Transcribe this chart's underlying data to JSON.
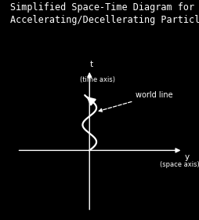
{
  "title_line1": "Simplified Space-Time Diagram for",
  "title_line2": "Accelerating/Decellerating Particle",
  "background_color": "#000000",
  "axis_color": "#ffffff",
  "text_color": "#ffffff",
  "worldline_color": "#ffffff",
  "annotation_color": "#ffffff",
  "t_label": "t",
  "t_sublabel": "(time axis)",
  "y_label": "y",
  "y_sublabel": "(space axis)",
  "worldline_label": "world line",
  "title_fontsize": 8.5,
  "label_fontsize": 7.5,
  "annot_fontsize": 7.0
}
